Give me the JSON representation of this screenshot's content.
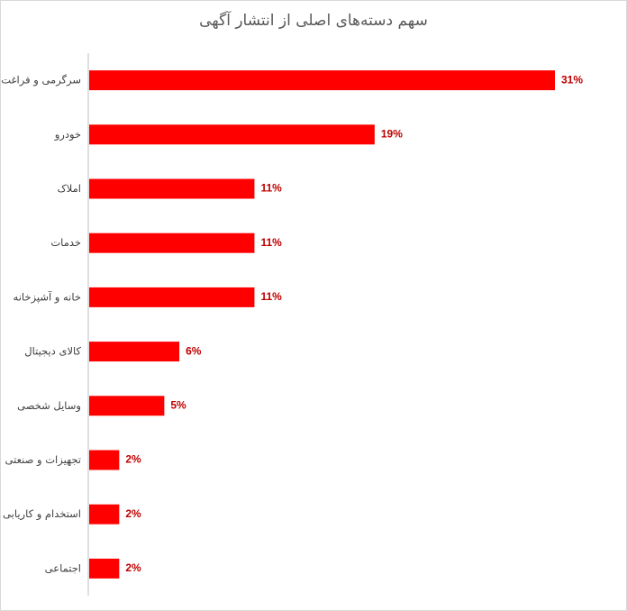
{
  "chart_data": {
    "type": "bar",
    "orientation": "horizontal",
    "title": "سهم دسته‌های اصلی از انتشار آگهی",
    "categories": [
      "سرگرمی و فراغت",
      "خودرو",
      "املاک",
      "خدمات",
      "خانه و آشپزخانه",
      "کالای دیجیتال",
      "وسایل شخصی",
      "تجهیزات و صنعتی",
      "استخدام و کاریابی",
      "اجتماعی"
    ],
    "values": [
      31,
      19,
      11,
      11,
      11,
      6,
      5,
      2,
      2,
      2
    ],
    "value_labels": [
      "31%",
      "19%",
      "11%",
      "11%",
      "11%",
      "6%",
      "5%",
      "2%",
      "2%",
      "2%"
    ],
    "unit": "%",
    "xlim": [
      0,
      32
    ],
    "grid": false,
    "legend": "none",
    "colors": {
      "bar": "#ff0000",
      "value_label": "#c00000",
      "axis": "#bfbfbf",
      "category_label": "#404040",
      "title": "#595959"
    }
  }
}
